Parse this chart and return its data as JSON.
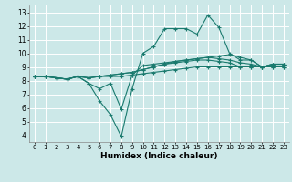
{
  "title": "",
  "xlabel": "Humidex (Indice chaleur)",
  "ylabel": "",
  "xlim": [
    -0.5,
    23.5
  ],
  "ylim": [
    3.5,
    13.5
  ],
  "xticks": [
    0,
    1,
    2,
    3,
    4,
    5,
    6,
    7,
    8,
    9,
    10,
    11,
    12,
    13,
    14,
    15,
    16,
    17,
    18,
    19,
    20,
    21,
    22,
    23
  ],
  "yticks": [
    4,
    5,
    6,
    7,
    8,
    9,
    10,
    11,
    12,
    13
  ],
  "bg_color": "#cce8e8",
  "grid_color": "#ffffff",
  "line_color": "#1a7a6e",
  "lines": [
    [
      0,
      8.3,
      1,
      8.3,
      2,
      8.2,
      3,
      8.1,
      4,
      8.3,
      5,
      7.8,
      6,
      6.5,
      7,
      5.5,
      8,
      3.9,
      9,
      7.4,
      10,
      10.0,
      11,
      10.5,
      12,
      11.8,
      13,
      11.8,
      14,
      11.8,
      15,
      11.4,
      16,
      12.8,
      17,
      11.9,
      18,
      10.0,
      19,
      9.5,
      20,
      9.5,
      21,
      9.0,
      22,
      9.2,
      23,
      9.2
    ],
    [
      0,
      8.3,
      1,
      8.3,
      2,
      8.2,
      3,
      8.1,
      4,
      8.3,
      5,
      8.2,
      6,
      8.3,
      7,
      8.4,
      8,
      8.5,
      9,
      8.6,
      10,
      8.8,
      11,
      9.0,
      12,
      9.2,
      13,
      9.4,
      14,
      9.5,
      15,
      9.6,
      16,
      9.7,
      17,
      9.8,
      18,
      9.9,
      19,
      9.7,
      20,
      9.5,
      21,
      9.0,
      22,
      9.2,
      23,
      9.2
    ],
    [
      0,
      8.3,
      1,
      8.3,
      2,
      8.2,
      3,
      8.1,
      4,
      8.3,
      5,
      8.2,
      6,
      8.3,
      7,
      8.4,
      8,
      8.5,
      9,
      8.6,
      10,
      8.8,
      11,
      9.0,
      12,
      9.2,
      13,
      9.3,
      14,
      9.4,
      15,
      9.5,
      16,
      9.5,
      17,
      9.4,
      18,
      9.3,
      19,
      9.0,
      20,
      9.0,
      21,
      9.0,
      22,
      9.0,
      23,
      9.0
    ],
    [
      0,
      8.3,
      1,
      8.3,
      2,
      8.2,
      3,
      8.1,
      4,
      8.3,
      5,
      8.2,
      6,
      8.3,
      7,
      8.3,
      8,
      8.3,
      9,
      8.4,
      10,
      8.5,
      11,
      8.6,
      12,
      8.7,
      13,
      8.8,
      14,
      8.9,
      15,
      9.0,
      16,
      9.0,
      17,
      9.0,
      18,
      9.0,
      19,
      9.0,
      20,
      9.0,
      21,
      9.0,
      22,
      9.0,
      23,
      9.0
    ],
    [
      0,
      8.3,
      1,
      8.3,
      2,
      8.2,
      3,
      8.1,
      4,
      8.3,
      5,
      7.8,
      6,
      7.4,
      7,
      7.8,
      8,
      5.9,
      9,
      8.4,
      10,
      9.1,
      11,
      9.2,
      12,
      9.3,
      13,
      9.4,
      14,
      9.5,
      15,
      9.6,
      16,
      9.7,
      17,
      9.6,
      18,
      9.5,
      19,
      9.3,
      20,
      9.2,
      21,
      9.0,
      22,
      9.2,
      23,
      9.2
    ]
  ]
}
